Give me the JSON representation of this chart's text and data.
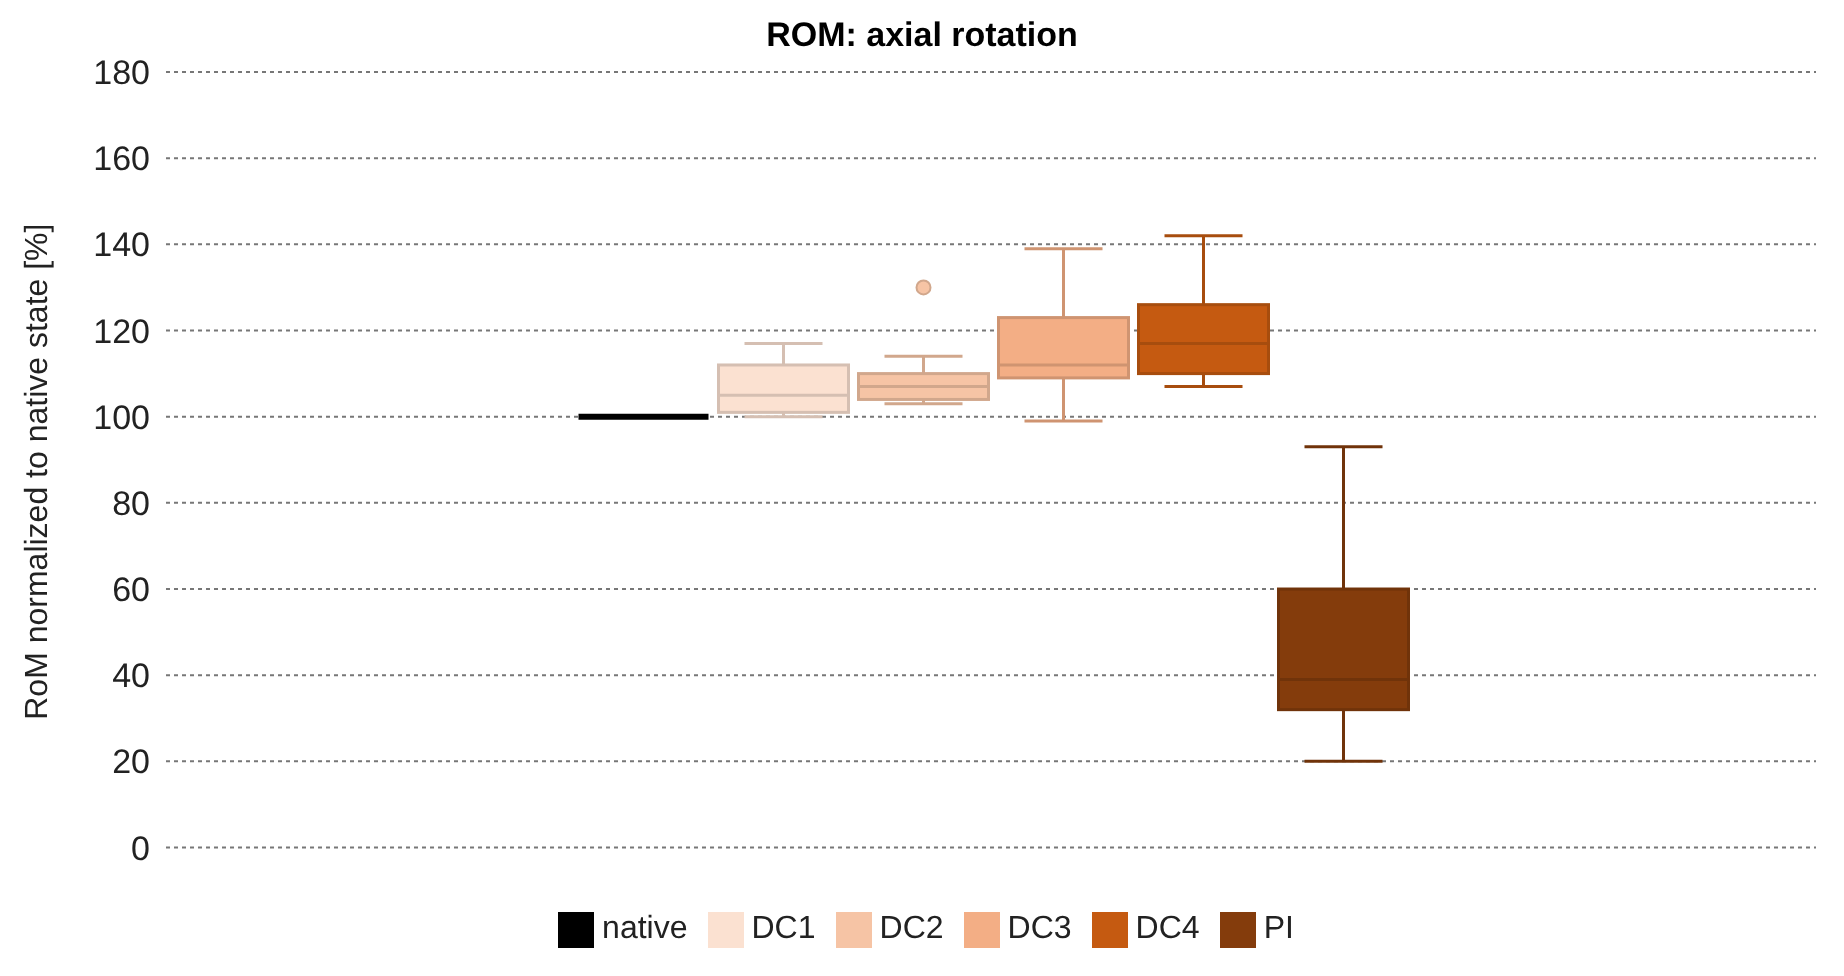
{
  "chart_data": {
    "type": "box",
    "title": "ROM: axial rotation",
    "ylabel": "RoM normalized to native state [%]",
    "categories": [
      null
    ],
    "series": [
      {
        "name": "native",
        "color": "#000000",
        "boxes": [
          {
            "low": 100,
            "q1": 100,
            "median": 100,
            "q3": 100,
            "high": 100
          }
        ]
      },
      {
        "name": "DC1",
        "color": "#fbe1d1",
        "boxes": [
          {
            "low": 100,
            "q1": 101,
            "median": 105,
            "q3": 112,
            "high": 117
          }
        ]
      },
      {
        "name": "DC2",
        "color": "#f6c4a5",
        "boxes": [
          {
            "low": 103,
            "q1": 104,
            "median": 107,
            "q3": 110,
            "high": 114,
            "outliers": [
              130
            ]
          }
        ]
      },
      {
        "name": "DC3",
        "color": "#f3ae85",
        "boxes": [
          {
            "low": 99,
            "q1": 109,
            "median": 112,
            "q3": 123,
            "high": 139
          }
        ]
      },
      {
        "name": "DC4",
        "color": "#c55a11",
        "boxes": [
          {
            "low": 107,
            "q1": 110,
            "median": 117,
            "q3": 126,
            "high": 142
          }
        ]
      },
      {
        "name": "PI",
        "color": "#843c0c",
        "boxes": [
          {
            "low": 20,
            "q1": 32,
            "median": 39,
            "q3": 60,
            "high": 93
          }
        ]
      }
    ],
    "ylim": [
      0,
      180
    ],
    "yticks": [
      0,
      20,
      40,
      60,
      80,
      100,
      120,
      140,
      160,
      180
    ],
    "grid": "y",
    "legend": "bottom",
    "tick_labels": "y"
  }
}
